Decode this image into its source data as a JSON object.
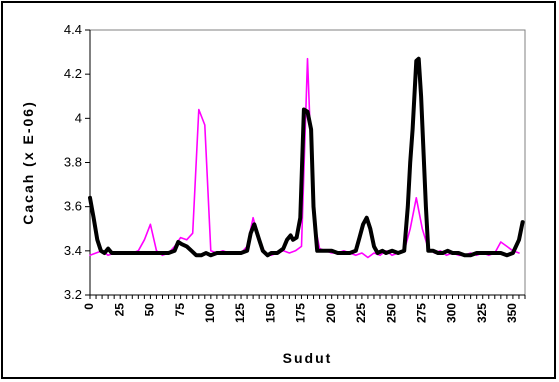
{
  "chart_data": {
    "type": "line",
    "xlabel": "Sudut",
    "ylabel": "Cacah (x E-06)",
    "xlim": [
      0,
      360
    ],
    "ylim": [
      3.2,
      4.4
    ],
    "x_ticks": [
      "0",
      "25",
      "50",
      "75",
      "100",
      "125",
      "150",
      "175",
      "200",
      "225",
      "250",
      "275",
      "300",
      "325",
      "350"
    ],
    "y_ticks": [
      "3.2",
      "3.4",
      "3.6",
      "3.8",
      "4",
      "4.2",
      "4.4"
    ],
    "grid": false,
    "legend": "none",
    "series": [
      {
        "color": "#ff00ff",
        "line_width": "thin",
        "x": [
          0,
          5,
          10,
          15,
          20,
          25,
          30,
          35,
          40,
          45,
          50,
          55,
          60,
          65,
          70,
          75,
          80,
          85,
          90,
          95,
          100,
          105,
          110,
          115,
          120,
          125,
          130,
          135,
          140,
          145,
          150,
          155,
          160,
          165,
          170,
          175,
          180,
          185,
          190,
          195,
          200,
          205,
          210,
          215,
          220,
          225,
          230,
          235,
          240,
          245,
          250,
          255,
          260,
          265,
          270,
          275,
          280,
          285,
          290,
          295,
          300,
          305,
          310,
          315,
          320,
          325,
          330,
          335,
          340,
          345,
          350,
          355
        ],
        "y": [
          3.38,
          3.39,
          3.4,
          3.38,
          3.39,
          3.39,
          3.39,
          3.39,
          3.4,
          3.45,
          3.52,
          3.4,
          3.38,
          3.39,
          3.42,
          3.46,
          3.45,
          3.48,
          4.04,
          3.97,
          3.4,
          3.39,
          3.4,
          3.39,
          3.39,
          3.39,
          3.42,
          3.55,
          3.45,
          3.39,
          3.38,
          3.39,
          3.4,
          3.39,
          3.4,
          3.42,
          4.27,
          3.55,
          3.41,
          3.4,
          3.39,
          3.39,
          3.4,
          3.39,
          3.38,
          3.39,
          3.37,
          3.39,
          3.38,
          3.4,
          3.38,
          3.39,
          3.4,
          3.5,
          3.64,
          3.5,
          3.41,
          3.39,
          3.4,
          3.38,
          3.39,
          3.38,
          3.38,
          3.39,
          3.38,
          3.39,
          3.38,
          3.39,
          3.44,
          3.42,
          3.4,
          3.39
        ]
      },
      {
        "color": "#000000",
        "line_width": "thick",
        "x": [
          0,
          3,
          6,
          9,
          12,
          15,
          18,
          21,
          25,
          30,
          35,
          40,
          45,
          50,
          55,
          60,
          65,
          70,
          73,
          76,
          80,
          84,
          88,
          92,
          96,
          100,
          105,
          110,
          115,
          120,
          125,
          130,
          133,
          136,
          140,
          143,
          147,
          150,
          155,
          160,
          163,
          166,
          168,
          171,
          174,
          177,
          180,
          183,
          185,
          188,
          190,
          195,
          200,
          205,
          210,
          215,
          220,
          223,
          226,
          229,
          232,
          235,
          238,
          242,
          245,
          250,
          255,
          260,
          263,
          265,
          267,
          270,
          272,
          274,
          276,
          278,
          280,
          284,
          288,
          292,
          296,
          300,
          305,
          310,
          315,
          320,
          325,
          330,
          335,
          340,
          345,
          350,
          355,
          358
        ],
        "y": [
          3.64,
          3.55,
          3.45,
          3.4,
          3.39,
          3.41,
          3.39,
          3.39,
          3.39,
          3.39,
          3.39,
          3.39,
          3.39,
          3.39,
          3.39,
          3.39,
          3.39,
          3.4,
          3.44,
          3.43,
          3.42,
          3.4,
          3.38,
          3.38,
          3.39,
          3.38,
          3.39,
          3.39,
          3.39,
          3.39,
          3.39,
          3.4,
          3.48,
          3.52,
          3.45,
          3.4,
          3.38,
          3.39,
          3.39,
          3.41,
          3.45,
          3.47,
          3.45,
          3.46,
          3.55,
          4.04,
          4.03,
          3.95,
          3.6,
          3.4,
          3.4,
          3.4,
          3.4,
          3.39,
          3.39,
          3.39,
          3.4,
          3.46,
          3.52,
          3.55,
          3.5,
          3.42,
          3.39,
          3.4,
          3.39,
          3.4,
          3.39,
          3.4,
          3.6,
          3.8,
          3.95,
          4.26,
          4.27,
          4.1,
          3.85,
          3.6,
          3.4,
          3.4,
          3.39,
          3.39,
          3.4,
          3.39,
          3.39,
          3.38,
          3.38,
          3.39,
          3.39,
          3.39,
          3.39,
          3.39,
          3.38,
          3.39,
          3.45,
          3.53
        ]
      }
    ]
  }
}
